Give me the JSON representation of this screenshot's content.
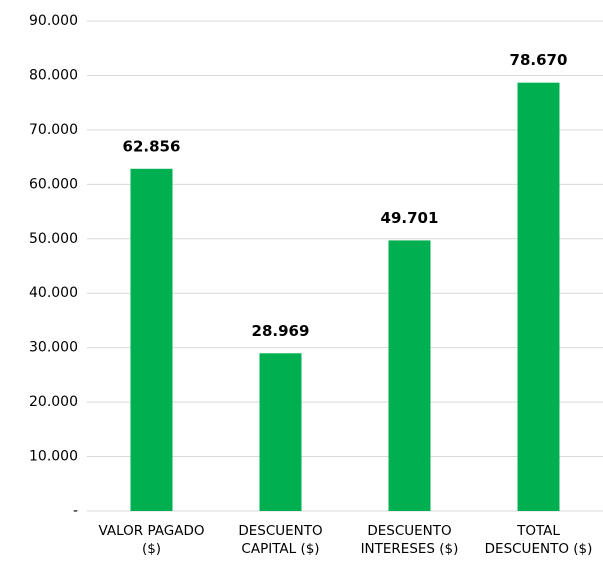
{
  "chart_data": {
    "type": "bar",
    "categories": [
      "VALOR PAGADO\n($)",
      "DESCUENTO\nCAPITAL ($)",
      "DESCUENTO\nINTERESES ($)",
      "TOTAL\nDESCUENTO ($)"
    ],
    "values": [
      62856,
      28969,
      49701,
      78670
    ],
    "value_labels": [
      "62.856",
      "28.969",
      "49.701",
      "78.670"
    ],
    "color": "#00b050",
    "ylim": [
      0,
      90000
    ],
    "yticks": [
      {
        "value": 0,
        "label": "-"
      },
      {
        "value": 10000,
        "label": "10.000"
      },
      {
        "value": 20000,
        "label": "20.000"
      },
      {
        "value": 30000,
        "label": "30.000"
      },
      {
        "value": 40000,
        "label": "40.000"
      },
      {
        "value": 50000,
        "label": "50.000"
      },
      {
        "value": 60000,
        "label": "60.000"
      },
      {
        "value": 70000,
        "label": "70.000"
      },
      {
        "value": 80000,
        "label": "80.000"
      },
      {
        "value": 90000,
        "label": "90.000"
      }
    ],
    "grid": true
  }
}
